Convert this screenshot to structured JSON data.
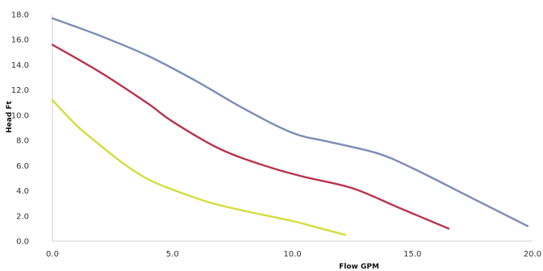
{
  "chart_data": {
    "type": "line",
    "title": "",
    "xlabel": "Flow GPM",
    "ylabel": "Head Ft",
    "xlim": [
      0,
      20
    ],
    "ylim": [
      0,
      18
    ],
    "x_ticks": [
      "0.0",
      "5.0",
      "10.0",
      "15.0",
      "20.0"
    ],
    "y_ticks": [
      "0.0",
      "2.0",
      "4.0",
      "6.0",
      "8.0",
      "10.0",
      "12.0",
      "14.0",
      "16.0",
      "18.0"
    ],
    "grid": false,
    "legend": "none",
    "series": [
      {
        "color": "#7b8cb6",
        "points": [
          [
            0,
            17.7
          ],
          [
            2,
            16.3
          ],
          [
            4,
            14.7
          ],
          [
            6,
            12.7
          ],
          [
            8,
            10.5
          ],
          [
            10,
            8.6
          ],
          [
            11.5,
            7.9
          ],
          [
            13.5,
            7.0
          ],
          [
            15,
            5.8
          ],
          [
            17.5,
            3.4
          ],
          [
            19.8,
            1.2
          ]
        ]
      },
      {
        "color": "#b8344f",
        "points": [
          [
            0,
            15.6
          ],
          [
            2,
            13.4
          ],
          [
            4,
            10.9
          ],
          [
            5,
            9.5
          ],
          [
            7,
            7.3
          ],
          [
            9,
            5.9
          ],
          [
            10.5,
            5.1
          ],
          [
            12.5,
            4.2
          ],
          [
            14.5,
            2.6
          ],
          [
            16.5,
            1.0
          ]
        ]
      },
      {
        "color": "#d4dc3c",
        "points": [
          [
            0,
            11.2
          ],
          [
            1,
            9.2
          ],
          [
            2,
            7.6
          ],
          [
            3,
            6.1
          ],
          [
            4,
            4.9
          ],
          [
            5,
            4.1
          ],
          [
            6.5,
            3.1
          ],
          [
            8,
            2.4
          ],
          [
            10,
            1.6
          ],
          [
            11,
            1.1
          ],
          [
            12.2,
            0.5
          ]
        ]
      }
    ]
  }
}
